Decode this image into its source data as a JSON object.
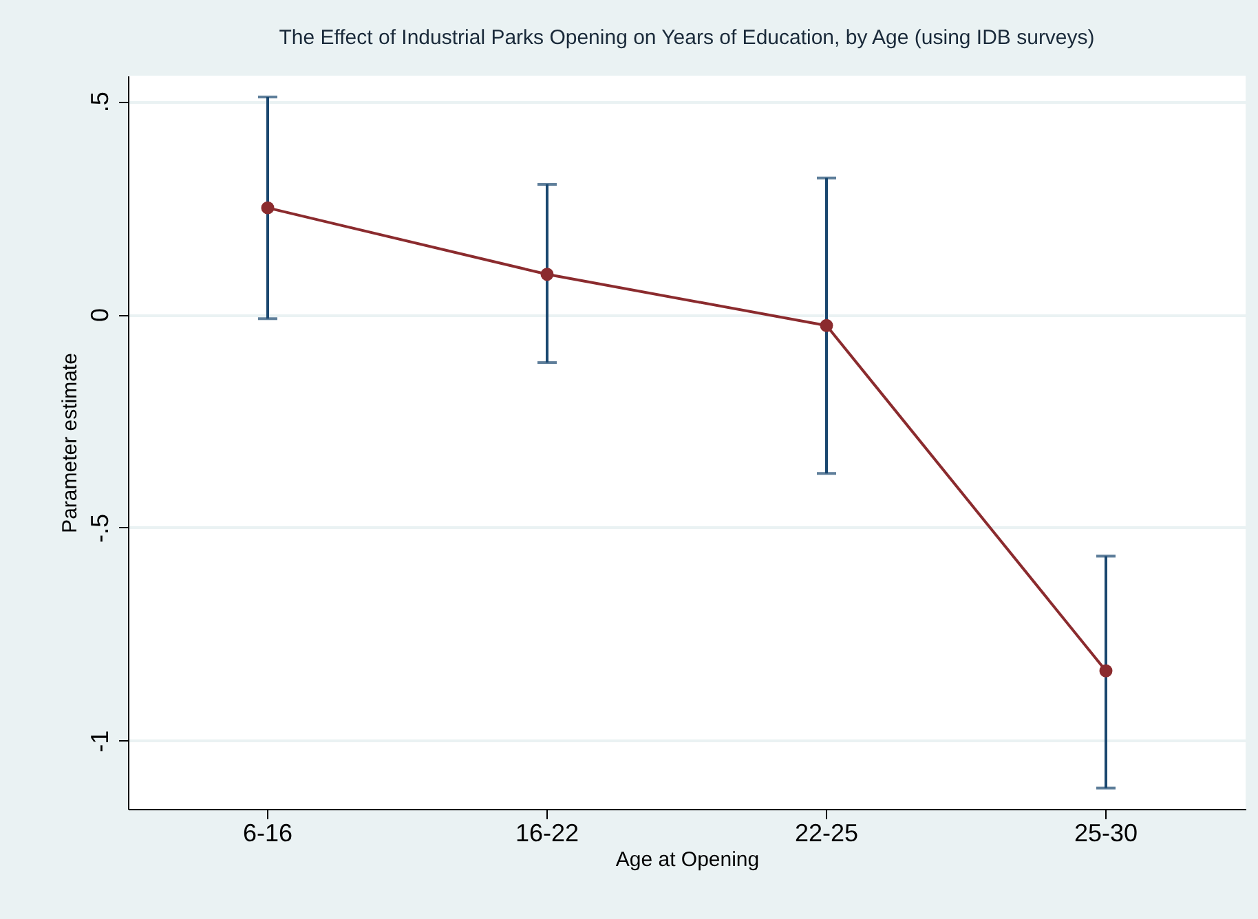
{
  "chart_data": {
    "type": "line",
    "title": "The Effect of Industrial Parks Opening on Years of Education, by Age (using IDB surveys)",
    "xlabel": "Age at Opening",
    "ylabel": "Parameter estimate",
    "categories": [
      "6-16",
      "16-22",
      "22-25",
      "25-30"
    ],
    "series": [
      {
        "color": "#8b2b2e",
        "values": [
          0.25,
          0.094,
          -0.026,
          -0.836
        ],
        "errors": [
          [
            -0.01,
            0.51
          ],
          [
            -0.113,
            0.305
          ],
          [
            -0.373,
            0.32
          ],
          [
            -1.111,
            -0.567
          ]
        ]
      }
    ],
    "ylim": [
      -1.16,
      0.56
    ],
    "yticks": [
      {
        "value": 0.5,
        "label": ".5"
      },
      0,
      {
        "value": -0.5,
        "label": "-.5"
      },
      -1
    ],
    "grid": "y",
    "marker": "circle",
    "line_style": "solid"
  }
}
